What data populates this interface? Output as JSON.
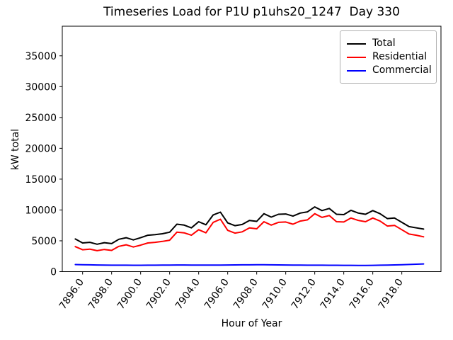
{
  "chart_data": {
    "type": "line",
    "title": "Timeseries Load for P1U p1uhs20_1247  Day 330",
    "xlabel": "Hour of Year",
    "ylabel": "kW total",
    "xlim": [
      7894.6,
      7920.7
    ],
    "ylim": [
      0,
      39800
    ],
    "grid": false,
    "legend_position": "upper right",
    "x_ticks": [
      7896,
      7898,
      7900,
      7902,
      7904,
      7906,
      7908,
      7910,
      7912,
      7914,
      7916,
      7918
    ],
    "x_tick_labels": [
      "7896.0",
      "7898.0",
      "7900.0",
      "7902.0",
      "7904.0",
      "7906.0",
      "7908.0",
      "7910.0",
      "7912.0",
      "7914.0",
      "7916.0",
      "7918.0"
    ],
    "y_ticks": [
      0,
      5000,
      10000,
      15000,
      20000,
      25000,
      30000,
      35000
    ],
    "y_tick_labels": [
      "0",
      "5000",
      "10000",
      "15000",
      "20000",
      "25000",
      "30000",
      "35000"
    ],
    "x": [
      7895.5,
      7896.0,
      7896.5,
      7897.0,
      7897.5,
      7898.0,
      7898.5,
      7899.0,
      7899.5,
      7900.0,
      7900.5,
      7901.0,
      7901.5,
      7902.0,
      7902.5,
      7903.0,
      7903.5,
      7904.0,
      7904.5,
      7905.0,
      7905.5,
      7906.0,
      7906.5,
      7907.0,
      7907.5,
      7908.0,
      7908.5,
      7909.0,
      7909.5,
      7910.0,
      7910.5,
      7911.0,
      7911.5,
      7912.0,
      7912.5,
      7913.0,
      7913.5,
      7914.0,
      7914.5,
      7915.0,
      7915.5,
      7916.0,
      7916.5,
      7917.0,
      7917.5,
      7918.0,
      7918.5,
      7919.0,
      7919.5
    ],
    "series": [
      {
        "name": "Total",
        "color": "#000000",
        "values": [
          5300,
          4650,
          4750,
          4450,
          4700,
          4550,
          5250,
          5500,
          5150,
          5500,
          5900,
          6000,
          6150,
          6400,
          7700,
          7550,
          7100,
          8100,
          7600,
          9200,
          9650,
          7900,
          7450,
          7650,
          8300,
          8150,
          9400,
          8850,
          9300,
          9350,
          9000,
          9500,
          9700,
          10500,
          9900,
          10250,
          9300,
          9250,
          9950,
          9500,
          9300,
          9900,
          9400,
          8600,
          8700,
          8000,
          7300,
          7100,
          6900
        ]
      },
      {
        "name": "Residential",
        "color": "#ff0000",
        "values": [
          4050,
          3550,
          3650,
          3400,
          3600,
          3450,
          4100,
          4350,
          4000,
          4300,
          4650,
          4750,
          4900,
          5100,
          6400,
          6300,
          5900,
          6800,
          6300,
          8000,
          8500,
          6700,
          6250,
          6450,
          7100,
          6950,
          8100,
          7550,
          8000,
          8050,
          7700,
          8200,
          8400,
          9400,
          8800,
          9100,
          8100,
          8050,
          8700,
          8300,
          8100,
          8700,
          8200,
          7400,
          7500,
          6800,
          6100,
          5900,
          5650
        ]
      },
      {
        "name": "Commercial",
        "color": "#0000ff",
        "values": [
          1150,
          1120,
          1100,
          1080,
          1060,
          1050,
          1040,
          1040,
          1030,
          1030,
          1040,
          1050,
          1060,
          1070,
          1080,
          1080,
          1070,
          1070,
          1060,
          1060,
          1070,
          1080,
          1090,
          1100,
          1100,
          1110,
          1110,
          1100,
          1090,
          1080,
          1070,
          1060,
          1050,
          1040,
          1040,
          1030,
          1030,
          1020,
          1020,
          1010,
          1010,
          1020,
          1040,
          1060,
          1090,
          1120,
          1160,
          1210,
          1250
        ]
      }
    ]
  }
}
